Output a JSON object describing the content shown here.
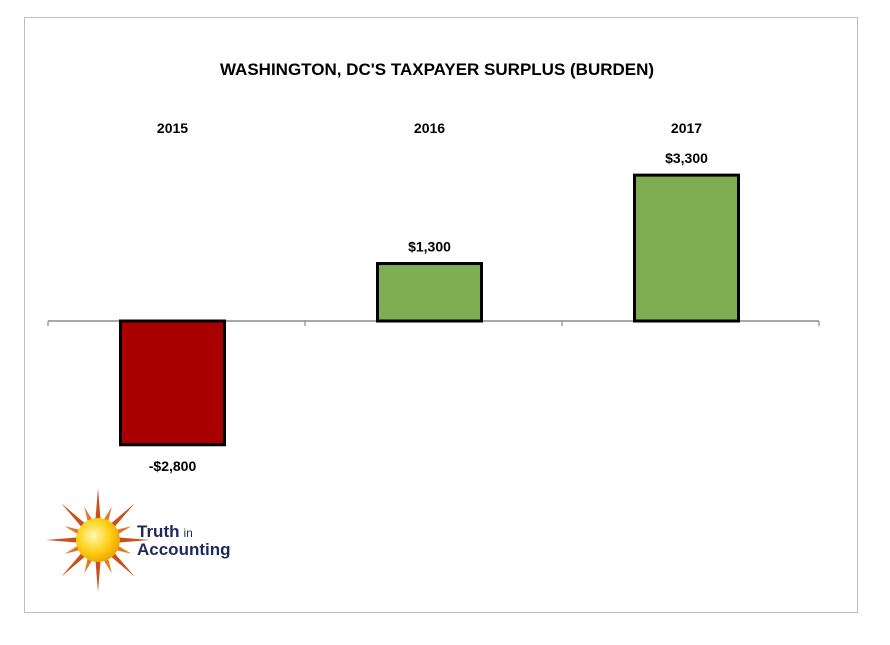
{
  "chart_data": {
    "type": "bar",
    "title": "WASHINGTON, DC'S TAXPAYER SURPLUS (BURDEN)",
    "categories": [
      "2015",
      "2016",
      "2017"
    ],
    "values": [
      -2800,
      1300,
      3300
    ],
    "value_labels": [
      "-$2,800",
      "$1,300",
      "$3,300"
    ],
    "colors": {
      "positive": "#7fae52",
      "negative": "#a80000",
      "outline": "#000000"
    },
    "xlabel": "",
    "ylabel": "",
    "grid": false,
    "legend": "none"
  },
  "logo": {
    "line1": "Truth",
    "line1_small": "in",
    "line2": "Accounting",
    "icon": "sun-icon",
    "text_color": "#1f2a5c"
  }
}
